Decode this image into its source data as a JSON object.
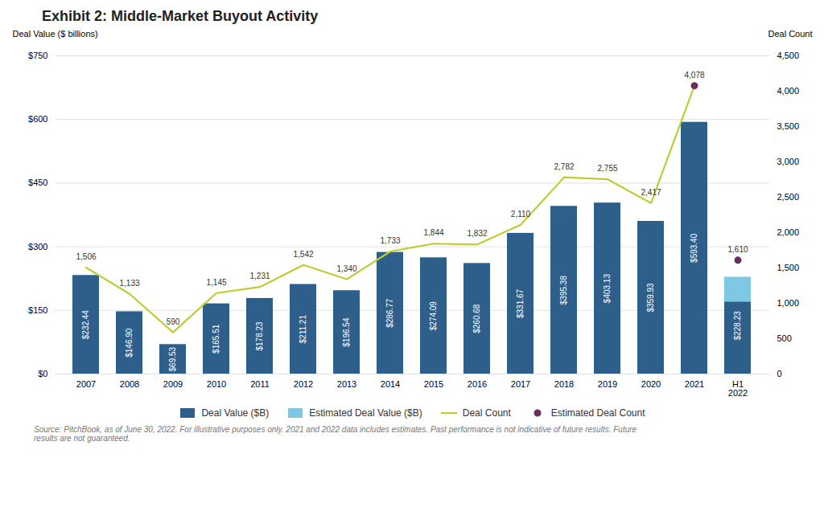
{
  "chart_data": {
    "type": "bar",
    "title": "Exhibit 2: Middle-Market Buyout Activity",
    "caption": "Source: PitchBook, as of June 30, 2022. For illustrative purposes only. 2021 and 2022 data includes estimates. Past performance is not indicative of future results. Future\nresults are not guaranteed.",
    "ylabel": "Deal Value ($ billions)",
    "y2label": "Deal Count",
    "categories": [
      "2007",
      "2008",
      "2009",
      "2010",
      "2011",
      "2012",
      "2013",
      "2014",
      "2015",
      "2016",
      "2017",
      "2018",
      "2019",
      "2020",
      "2021",
      "H1\n2022"
    ],
    "stacked": true,
    "grid": true,
    "legend": "bottom",
    "data_labels": true,
    "totals": [
      232.44,
      146.9,
      69.53,
      165.51,
      178.23,
      211.21,
      196.54,
      286.77,
      274.09,
      260.68,
      331.67,
      395.38,
      403.13,
      359.93,
      593.4,
      228.23
    ],
    "total_labels": [
      "$232.44",
      "$146.90",
      "$69.53",
      "$165.51",
      "$178.23",
      "$211.21",
      "$196.54",
      "$286.77",
      "$274.09",
      "$260.68",
      "$331.67",
      "$395.38",
      "$403.13",
      "$359.93",
      "$593.40",
      "$228.23"
    ],
    "series": [
      {
        "name": "Deal Value ($B)",
        "type": "bar",
        "color": "#2E5F8A",
        "values": [
          232.44,
          146.9,
          69.53,
          165.51,
          178.23,
          211.21,
          196.54,
          286.77,
          274.09,
          260.68,
          331.67,
          395.38,
          403.13,
          359.93,
          593.4,
          170.0
        ]
      },
      {
        "name": "Estimated Deal Value ($B)",
        "type": "bar",
        "color": "#7EC8E3",
        "values": [
          null,
          null,
          null,
          null,
          null,
          null,
          null,
          null,
          null,
          null,
          null,
          null,
          null,
          null,
          null,
          58.23
        ]
      },
      {
        "name": "Deal Count",
        "type": "line",
        "color": "#BFCC33",
        "axis": "y2",
        "values": [
          1506,
          1133,
          590,
          1145,
          1231,
          1542,
          1340,
          1733,
          1844,
          1832,
          2110,
          2782,
          2755,
          2417,
          4078,
          null
        ],
        "value_labels": [
          "1,506",
          "1,133",
          "590",
          "1,145",
          "1,231",
          "1,542",
          "1,340",
          "1,733",
          "1,844",
          "1,832",
          "2,110",
          "2,782",
          "2,755",
          "2,417",
          "4,078",
          null
        ]
      },
      {
        "name": "Estimated Deal Count",
        "type": "scatter",
        "color": "#6B2D5E",
        "axis": "y2",
        "values": [
          null,
          null,
          null,
          null,
          null,
          null,
          null,
          null,
          null,
          null,
          null,
          null,
          null,
          null,
          4078,
          1610
        ],
        "value_labels": [
          null,
          null,
          null,
          null,
          null,
          null,
          null,
          null,
          null,
          null,
          null,
          null,
          null,
          null,
          null,
          "1,610"
        ]
      }
    ],
    "ylim": [
      0,
      750
    ],
    "yticks": [
      {
        "value": 0,
        "label": "$0"
      },
      {
        "value": 150,
        "label": "$150"
      },
      {
        "value": 300,
        "label": "$300"
      },
      {
        "value": 450,
        "label": "$450"
      },
      {
        "value": 600,
        "label": "$600"
      },
      {
        "value": 750,
        "label": "$750"
      }
    ],
    "y2lim": [
      0,
      4500
    ],
    "y2ticks": [
      0,
      500,
      {
        "value": 1000,
        "label": "1,000"
      },
      {
        "value": 1500,
        "label": "1,500"
      },
      {
        "value": 2000,
        "label": "2,000"
      },
      {
        "value": 2500,
        "label": "2,500"
      },
      {
        "value": 3000,
        "label": "3,000"
      },
      {
        "value": 3500,
        "label": "3,500"
      },
      {
        "value": 4000,
        "label": "4,000"
      },
      {
        "value": 4500,
        "label": "4,500"
      }
    ]
  }
}
